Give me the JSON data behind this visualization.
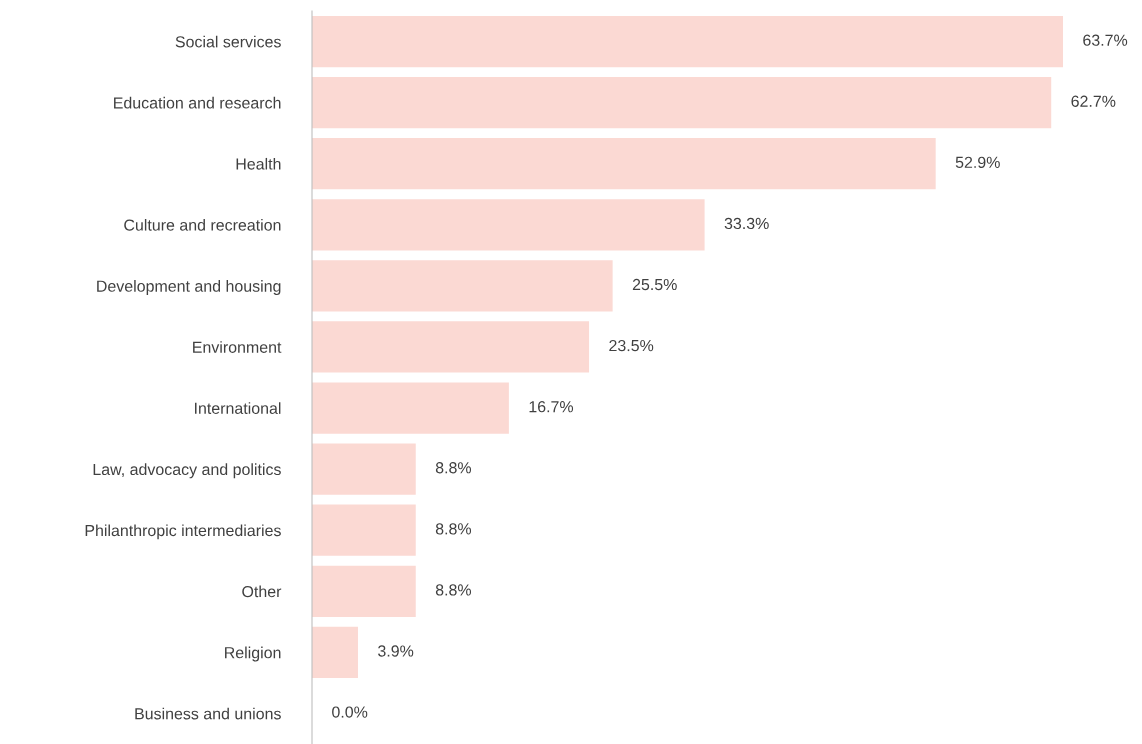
{
  "chart_data": {
    "type": "bar",
    "orientation": "horizontal",
    "categories": [
      "Social services",
      "Education and research",
      "Health",
      "Culture and recreation",
      "Development and housing",
      "Environment",
      "International",
      "Law, advocacy and politics",
      "Philanthropic intermediaries",
      "Other",
      "Religion",
      "Business and unions"
    ],
    "values": [
      63.7,
      62.7,
      52.9,
      33.3,
      25.5,
      23.5,
      16.7,
      8.8,
      8.8,
      8.8,
      3.9,
      0.0
    ],
    "value_labels": [
      "63.7%",
      "62.7%",
      "52.9%",
      "33.3%",
      "25.5%",
      "23.5%",
      "16.7%",
      "8.8%",
      "8.8%",
      "8.8%",
      "3.9%",
      "0.0%"
    ],
    "color": "#fbd9d3",
    "grid": false,
    "legend": false,
    "tick_labels": "y"
  }
}
